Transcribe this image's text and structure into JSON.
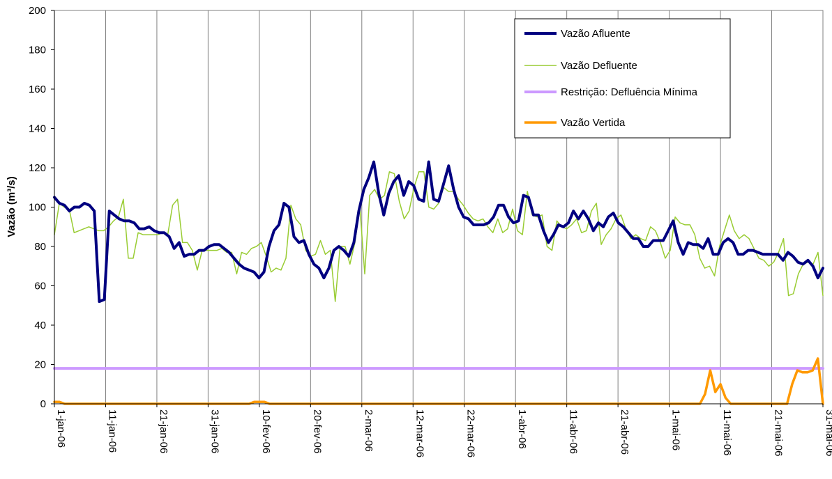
{
  "chart_data": {
    "type": "line",
    "title": "",
    "xlabel": "",
    "ylabel": "Vazão (m³/s)",
    "ylim": [
      0,
      200
    ],
    "yticks": [
      0,
      20,
      40,
      60,
      80,
      100,
      120,
      140,
      160,
      180,
      200
    ],
    "xlim": [
      0,
      150
    ],
    "xticks": [
      {
        "day": 0,
        "label": "1-jan-06"
      },
      {
        "day": 10,
        "label": "11-jan-06"
      },
      {
        "day": 20,
        "label": "21-jan-06"
      },
      {
        "day": 30,
        "label": "31-jan-06"
      },
      {
        "day": 40,
        "label": "10-fev-06"
      },
      {
        "day": 50,
        "label": "20-fev-06"
      },
      {
        "day": 60,
        "label": "2-mar-06"
      },
      {
        "day": 70,
        "label": "12-mar-06"
      },
      {
        "day": 80,
        "label": "22-mar-06"
      },
      {
        "day": 90,
        "label": "1-abr-06"
      },
      {
        "day": 100,
        "label": "11-abr-06"
      },
      {
        "day": 110,
        "label": "21-abr-06"
      },
      {
        "day": 120,
        "label": "1-mai-06"
      },
      {
        "day": 130,
        "label": "11-mai-06"
      },
      {
        "day": 140,
        "label": "21-mai-06"
      },
      {
        "day": 150,
        "label": "31-mai-06"
      }
    ],
    "grid": "vertical",
    "legend_position": "top-right",
    "series": [
      {
        "name": "Vazão Afluente",
        "color": "#000080",
        "width": 4,
        "values": [
          105,
          102,
          101,
          98,
          100,
          100,
          102,
          101,
          98,
          52,
          53,
          98,
          96,
          94,
          93,
          93,
          92,
          89,
          89,
          90,
          88,
          87,
          87,
          85,
          79,
          82,
          75,
          76,
          76,
          78,
          78,
          80,
          81,
          81,
          79,
          77,
          74,
          71,
          69,
          68,
          67,
          64,
          67,
          80,
          88,
          91,
          102,
          100,
          85,
          82,
          83,
          76,
          71,
          69,
          64,
          69,
          78,
          80,
          78,
          75,
          82,
          98,
          109,
          115,
          123,
          107,
          96,
          107,
          113,
          116,
          106,
          113,
          111,
          104,
          103,
          123,
          104,
          103,
          112,
          121,
          109,
          100,
          95,
          94,
          91,
          91,
          91,
          92,
          95,
          101,
          101,
          95,
          92,
          93,
          106,
          105,
          96,
          96,
          88,
          82,
          86,
          91,
          90,
          92,
          98,
          94,
          98,
          94,
          88,
          92,
          90,
          95,
          97,
          92,
          90,
          87,
          84,
          84,
          80,
          80,
          83,
          83,
          83,
          88,
          93,
          82,
          76,
          82,
          81,
          81,
          79,
          84,
          76,
          76,
          82,
          84,
          82,
          76,
          76,
          78,
          78,
          77,
          76,
          76,
          76,
          76,
          73,
          77,
          75,
          72,
          71,
          73,
          70,
          64,
          69
        ]
      },
      {
        "name": "Vazão Defluente",
        "color": "#99cc33",
        "width": 1.5,
        "values": [
          86,
          102,
          100,
          99,
          87,
          88,
          89,
          90,
          89,
          88,
          88,
          90,
          93,
          95,
          104,
          74,
          74,
          87,
          86,
          86,
          86,
          86,
          87,
          86,
          101,
          104,
          82,
          82,
          78,
          68,
          78,
          78,
          78,
          78,
          79,
          77,
          77,
          66,
          77,
          76,
          79,
          80,
          82,
          75,
          67,
          69,
          68,
          74,
          101,
          94,
          91,
          78,
          75,
          76,
          83,
          76,
          78,
          52,
          80,
          80,
          71,
          82,
          100,
          66,
          106,
          109,
          104,
          106,
          118,
          117,
          103,
          94,
          98,
          110,
          118,
          118,
          100,
          99,
          102,
          110,
          108,
          108,
          104,
          101,
          97,
          94,
          93,
          94,
          90,
          87,
          94,
          87,
          89,
          99,
          88,
          86,
          108,
          96,
          95,
          96,
          80,
          78,
          93,
          90,
          89,
          91,
          94,
          87,
          88,
          98,
          102,
          81,
          86,
          89,
          94,
          96,
          89,
          84,
          86,
          84,
          83,
          90,
          88,
          82,
          74,
          78,
          95,
          92,
          91,
          91,
          86,
          74,
          69,
          70,
          65,
          80,
          88,
          96,
          88,
          84,
          86,
          84,
          79,
          74,
          73,
          70,
          72,
          77,
          84,
          55,
          56,
          66,
          71,
          72,
          71,
          77,
          55
        ]
      },
      {
        "name": "Restrição: Defluência Mínima",
        "color": "#cc99ff",
        "width": 4,
        "values": [
          18,
          18
        ]
      },
      {
        "name": "Vazão Vertida",
        "color": "#ff9900",
        "width": 3.5,
        "points": [
          [
            0,
            1
          ],
          [
            1,
            1
          ],
          [
            2,
            0
          ],
          [
            38,
            0
          ],
          [
            39,
            1
          ],
          [
            40,
            1
          ],
          [
            41,
            1
          ],
          [
            42,
            0
          ],
          [
            126,
            0
          ],
          [
            127,
            5
          ],
          [
            128,
            17
          ],
          [
            129,
            6
          ],
          [
            130,
            10
          ],
          [
            131,
            3
          ],
          [
            132,
            0
          ],
          [
            143,
            0
          ],
          [
            144,
            10
          ],
          [
            145,
            17
          ],
          [
            146,
            16
          ],
          [
            147,
            16
          ],
          [
            148,
            17
          ],
          [
            149,
            23
          ],
          [
            150,
            0
          ]
        ]
      }
    ]
  }
}
